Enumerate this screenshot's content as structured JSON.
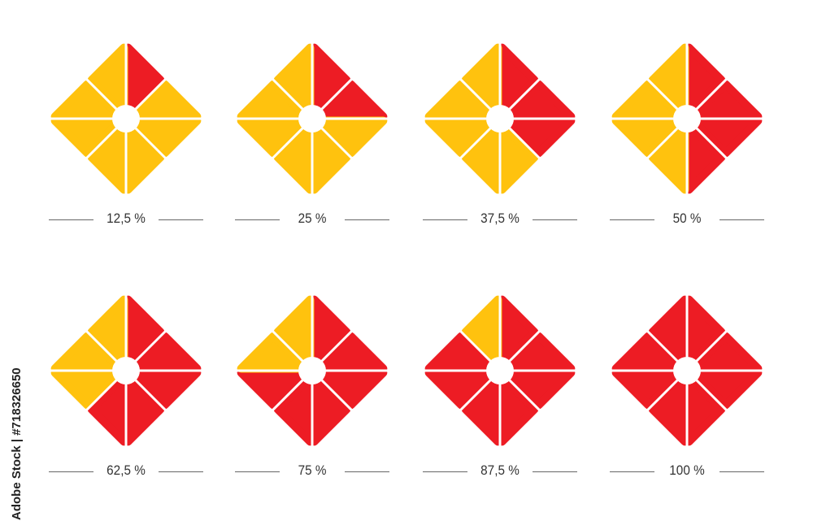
{
  "colors": {
    "filled": "#ED1C24",
    "empty": "#FFC20E",
    "background": "#FFFFFF"
  },
  "segments_per_diagram": 8,
  "diagrams": [
    {
      "label": "12,5 %",
      "percent": 12.5
    },
    {
      "label": "25 %",
      "percent": 25
    },
    {
      "label": "37,5 %",
      "percent": 37.5
    },
    {
      "label": "50 %",
      "percent": 50
    },
    {
      "label": "62,5 %",
      "percent": 62.5
    },
    {
      "label": "75 %",
      "percent": 75
    },
    {
      "label": "87,5 %",
      "percent": 87.5
    },
    {
      "label": "100 %",
      "percent": 100
    }
  ],
  "credit": "Adobe Stock | #718326650"
}
